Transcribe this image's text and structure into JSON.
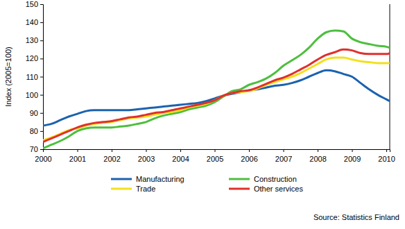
{
  "chart_data": {
    "type": "line",
    "y_label": "Index (2005=100)",
    "source": "Source: Statistics Finland",
    "x": [
      2000,
      2000.25,
      2000.5,
      2000.75,
      2001,
      2001.25,
      2001.5,
      2001.75,
      2002,
      2002.25,
      2002.5,
      2002.75,
      2003,
      2003.25,
      2003.5,
      2003.75,
      2004,
      2004.25,
      2004.5,
      2004.75,
      2005,
      2005.25,
      2005.5,
      2005.75,
      2006,
      2006.25,
      2006.5,
      2006.75,
      2007,
      2007.25,
      2007.5,
      2007.75,
      2008,
      2008.25,
      2008.5,
      2008.75,
      2009,
      2009.25,
      2009.5,
      2009.75,
      2010,
      2010.1
    ],
    "series": [
      {
        "name": "Manufacturing",
        "color": "#1b62ae",
        "values": [
          83,
          84,
          86,
          88,
          89.5,
          91,
          91.5,
          91.5,
          91.5,
          91.5,
          91.5,
          92,
          92.5,
          93,
          93.5,
          94,
          94.5,
          95,
          95.5,
          96.5,
          98,
          99.5,
          100.5,
          101.5,
          102.5,
          103,
          104,
          105,
          105.5,
          106.5,
          108,
          110,
          112,
          113.5,
          113,
          111.5,
          110,
          106.5,
          103,
          100,
          97.5,
          96.5
        ]
      },
      {
        "name": "Construction",
        "color": "#4dbf3e",
        "values": [
          70.5,
          72.5,
          74.5,
          77,
          80,
          81.5,
          82,
          82,
          82,
          82.5,
          83,
          84,
          85,
          87,
          88.5,
          89.5,
          90.5,
          92,
          93,
          94,
          96,
          99,
          102,
          103,
          105.5,
          107,
          109,
          112,
          116,
          119,
          122,
          126,
          131,
          134.5,
          135.5,
          135,
          131,
          129,
          128,
          127,
          126.5,
          126
        ]
      },
      {
        "name": "Trade",
        "color": "#f2e01c",
        "values": [
          75,
          76.5,
          78.5,
          80.5,
          81.5,
          83,
          84,
          84.5,
          85,
          86,
          87,
          87.5,
          88,
          89,
          90,
          90.5,
          91.5,
          93,
          94,
          95,
          97,
          99.5,
          101,
          101.5,
          102,
          103.5,
          105.5,
          107,
          108.5,
          110,
          112,
          114.5,
          117,
          119.5,
          120.5,
          120.5,
          119.5,
          118.5,
          118,
          117.5,
          117.5,
          117.5
        ]
      },
      {
        "name": "Other services",
        "color": "#e0302b",
        "values": [
          74,
          76,
          78,
          80,
          82,
          83.5,
          84.5,
          85,
          85.5,
          86.5,
          87.5,
          88,
          89,
          90,
          90.5,
          91.5,
          92.5,
          93.5,
          94.5,
          95.5,
          97,
          99.5,
          101,
          102,
          102.5,
          104,
          106,
          108,
          109.5,
          111.5,
          114,
          116.5,
          119.5,
          122,
          123.5,
          125,
          124.5,
          123,
          122.5,
          122.5,
          122.5,
          123
        ]
      }
    ],
    "xlim": [
      2000,
      2010.1
    ],
    "xticks": [
      2000,
      2001,
      2002,
      2003,
      2004,
      2005,
      2006,
      2007,
      2008,
      2009,
      2010
    ],
    "ylim": [
      70,
      150
    ],
    "yticks": [
      70,
      80,
      90,
      100,
      110,
      120,
      130,
      140,
      150
    ],
    "grid": false,
    "legend": "bottom"
  }
}
